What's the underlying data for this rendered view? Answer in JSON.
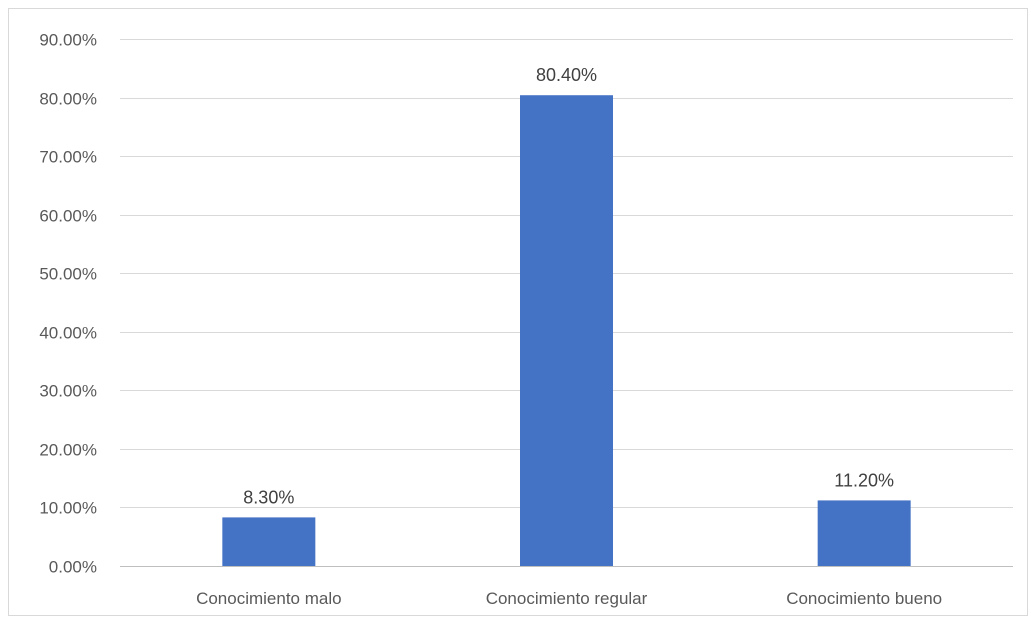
{
  "chart_data": {
    "type": "bar",
    "title": "",
    "xlabel": "",
    "ylabel": "",
    "categories": [
      "Conocimiento malo",
      "Conocimiento regular",
      "Conocimiento bueno"
    ],
    "values": [
      8.3,
      80.4,
      11.2
    ],
    "value_labels": [
      "8.30%",
      "80.40%",
      "11.20%"
    ],
    "ylim": [
      0,
      90
    ],
    "y_ticks": [
      0,
      10,
      20,
      30,
      40,
      50,
      60,
      70,
      80,
      90
    ],
    "y_tick_labels": [
      "0.00%",
      "10.00%",
      "20.00%",
      "30.00%",
      "40.00%",
      "50.00%",
      "60.00%",
      "70.00%",
      "80.00%",
      "90.00%"
    ],
    "grid": true,
    "legend": "none",
    "colors": {
      "bar": "#4472c4",
      "grid": "#d9d9d9",
      "axis": "#bfbfbf"
    }
  }
}
